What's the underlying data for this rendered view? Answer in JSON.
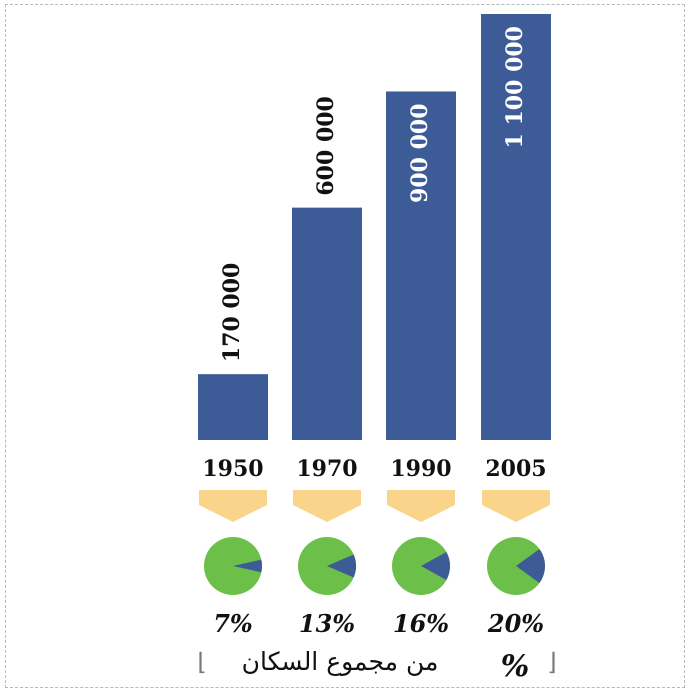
{
  "chart_data": {
    "type": "bar",
    "categories": [
      "1950",
      "1970",
      "1990",
      "2005"
    ],
    "values": [
      170000,
      600000,
      900000,
      1100000
    ],
    "value_labels": [
      "170 000",
      "600 000",
      "900 000",
      "1 100 000"
    ],
    "percentages": [
      7,
      13,
      16,
      20
    ],
    "percentage_labels": [
      "7%",
      "13%",
      "16%",
      "20%"
    ],
    "caption": "من مجموع السكان",
    "caption_symbol": "%",
    "ylim": [
      0,
      1100000
    ],
    "grid": false,
    "colors": {
      "bar": "#3d5b96",
      "pie_base": "#6cc04a",
      "pie_slice": "#3d5b96",
      "arrow": "#fbd48c",
      "value_text_outside": "#111111",
      "value_text_inside": "#ffffff"
    }
  }
}
